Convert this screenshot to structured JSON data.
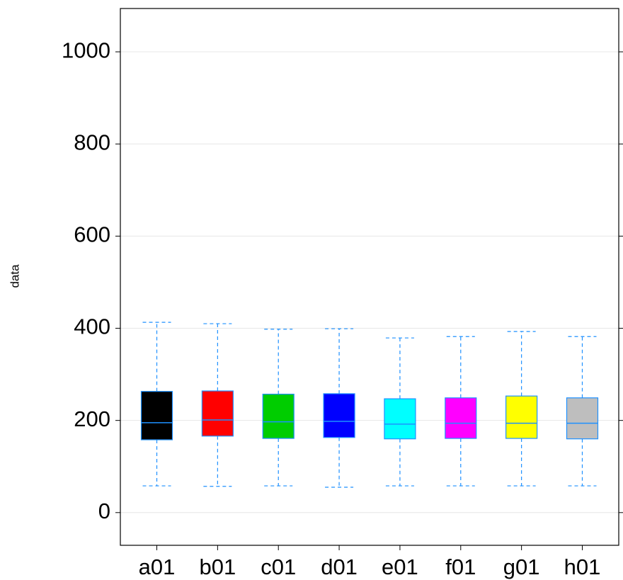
{
  "chart_data": {
    "type": "box",
    "y_label": "data",
    "categories": [
      "a01",
      "b01",
      "c01",
      "d01",
      "e01",
      "f01",
      "g01",
      "h01"
    ],
    "colors": [
      "#000000",
      "#ff0000",
      "#00cd00",
      "#0000ff",
      "#00ffff",
      "#ff00ff",
      "#ffff00",
      "#bebebe"
    ],
    "line_color": "#1e90ff",
    "min": [
      58,
      57,
      58,
      55,
      58,
      58,
      58,
      58
    ],
    "q1": [
      158,
      166,
      161,
      163,
      160,
      161,
      161,
      160
    ],
    "median": [
      195,
      201,
      197,
      198,
      192,
      194,
      194,
      194
    ],
    "q3": [
      263,
      264,
      257,
      258,
      247,
      249,
      253,
      249
    ],
    "max": [
      413,
      410,
      398,
      399,
      379,
      382,
      393,
      382
    ],
    "ylim": [
      -71,
      1094
    ],
    "yticks": [
      0,
      200,
      400,
      600,
      800,
      1000
    ],
    "grid": true
  }
}
